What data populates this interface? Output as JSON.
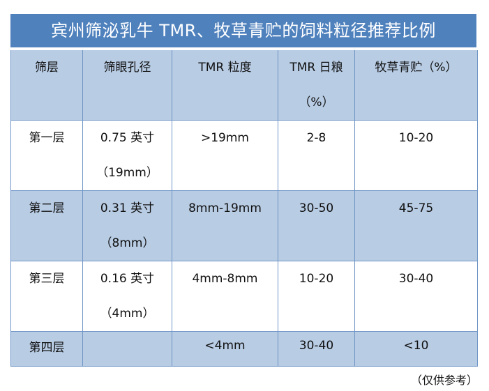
{
  "title": "宾州筛泌乳牛 TMR、牧草青贮的饲料粒径推荐比例",
  "headers": [
    "筛层",
    "筛眼孔径",
    "TMR 粒度",
    "TMR 日粮\n（%）",
    "牧草青贮（%）"
  ],
  "rows": [
    {
      "layer": "第一层",
      "aperture": "0.75 英寸\n（19mm）",
      "size": ">19mm",
      "tmr": "2-8",
      "silage": "10-20"
    },
    {
      "layer": "第二层",
      "aperture": "0.31 英寸\n（8mm）",
      "size": "8mm-19mm",
      "tmr": "30-50",
      "silage": "45-75"
    },
    {
      "layer": "第三层",
      "aperture": "0.16 英寸\n（4mm）",
      "size": "4mm-8mm",
      "tmr": "10-20",
      "silage": "30-40"
    },
    {
      "layer": "第四层",
      "aperture": "",
      "size": "<4mm",
      "tmr": "30-40",
      "silage": "<10"
    }
  ],
  "note": "（仅供参考）",
  "colors": {
    "title_bg": "#4f81bd",
    "header_bg": "#b8cce4",
    "alt_row_bg": "#b8cce4"
  }
}
